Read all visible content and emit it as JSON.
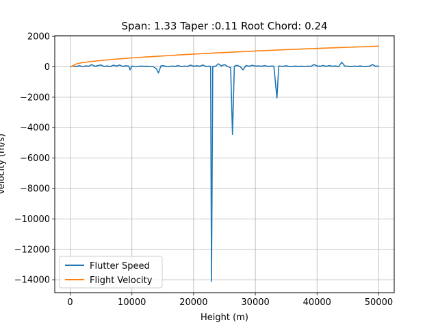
{
  "chart_data": {
    "type": "line",
    "title": "Span: 1.33 Taper :0.11 Root Chord: 0.24",
    "xlabel": "Height (m)",
    "ylabel": "Velocity (m/s)",
    "xlim": [
      -2500,
      52500
    ],
    "ylim": [
      -14850,
      2050
    ],
    "grid": true,
    "legend_position": "lower-left",
    "xticks": [
      0,
      10000,
      20000,
      30000,
      40000,
      50000
    ],
    "xtick_labels": [
      "0",
      "10000",
      "20000",
      "30000",
      "40000",
      "50000"
    ],
    "yticks": [
      2000,
      0,
      -2000,
      -4000,
      -6000,
      -8000,
      -10000,
      -12000,
      -14000
    ],
    "ytick_labels": [
      "2000",
      "0",
      "−2000",
      "−4000",
      "−6000",
      "−8000",
      "−10000",
      "−12000",
      "−14000"
    ],
    "series": [
      {
        "name": "Flutter Speed",
        "color": "#1f77b4",
        "points": [
          [
            0,
            0
          ],
          [
            500,
            60
          ],
          [
            1000,
            20
          ],
          [
            1500,
            80
          ],
          [
            2000,
            10
          ],
          [
            2500,
            60
          ],
          [
            3000,
            40
          ],
          [
            3500,
            150
          ],
          [
            4000,
            30
          ],
          [
            4500,
            80
          ],
          [
            5000,
            120
          ],
          [
            5500,
            20
          ],
          [
            6000,
            60
          ],
          [
            6500,
            20
          ],
          [
            7000,
            110
          ],
          [
            7500,
            50
          ],
          [
            8000,
            120
          ],
          [
            8500,
            30
          ],
          [
            9000,
            70
          ],
          [
            9500,
            50
          ],
          [
            9700,
            -200
          ],
          [
            10000,
            60
          ],
          [
            10500,
            0
          ],
          [
            11000,
            30
          ],
          [
            11500,
            50
          ],
          [
            12000,
            30
          ],
          [
            12500,
            40
          ],
          [
            13000,
            20
          ],
          [
            13500,
            10
          ],
          [
            14000,
            -150
          ],
          [
            14300,
            -400
          ],
          [
            14700,
            60
          ],
          [
            15000,
            80
          ],
          [
            15500,
            30
          ],
          [
            16000,
            20
          ],
          [
            16500,
            50
          ],
          [
            17000,
            30
          ],
          [
            17500,
            80
          ],
          [
            18000,
            20
          ],
          [
            18500,
            50
          ],
          [
            19000,
            30
          ],
          [
            19500,
            110
          ],
          [
            20000,
            40
          ],
          [
            20500,
            70
          ],
          [
            21000,
            40
          ],
          [
            21500,
            120
          ],
          [
            22000,
            20
          ],
          [
            22500,
            50
          ],
          [
            22750,
            30
          ],
          [
            22900,
            -14100
          ],
          [
            23100,
            40
          ],
          [
            23500,
            20
          ],
          [
            24000,
            200
          ],
          [
            24500,
            60
          ],
          [
            25000,
            150
          ],
          [
            25500,
            20
          ],
          [
            26000,
            -50
          ],
          [
            26300,
            -4450
          ],
          [
            26600,
            40
          ],
          [
            27000,
            100
          ],
          [
            27500,
            30
          ],
          [
            28000,
            -200
          ],
          [
            28500,
            90
          ],
          [
            29000,
            40
          ],
          [
            29500,
            100
          ],
          [
            30000,
            50
          ],
          [
            30500,
            60
          ],
          [
            31000,
            40
          ],
          [
            31500,
            80
          ],
          [
            32000,
            30
          ],
          [
            32500,
            50
          ],
          [
            33000,
            40
          ],
          [
            33500,
            -2050
          ],
          [
            33800,
            60
          ],
          [
            34000,
            50
          ],
          [
            34500,
            30
          ],
          [
            35000,
            70
          ],
          [
            35500,
            20
          ],
          [
            36000,
            30
          ],
          [
            36500,
            50
          ],
          [
            37000,
            30
          ],
          [
            37500,
            40
          ],
          [
            38000,
            20
          ],
          [
            38500,
            50
          ],
          [
            39000,
            30
          ],
          [
            39500,
            150
          ],
          [
            40000,
            60
          ],
          [
            40500,
            40
          ],
          [
            41000,
            90
          ],
          [
            41500,
            30
          ],
          [
            42000,
            80
          ],
          [
            42500,
            40
          ],
          [
            43000,
            60
          ],
          [
            43500,
            20
          ],
          [
            44000,
            300
          ],
          [
            44500,
            50
          ],
          [
            45000,
            40
          ],
          [
            45500,
            20
          ],
          [
            46000,
            50
          ],
          [
            46500,
            30
          ],
          [
            47000,
            60
          ],
          [
            47500,
            20
          ],
          [
            48000,
            30
          ],
          [
            48500,
            40
          ],
          [
            49000,
            150
          ],
          [
            49500,
            30
          ],
          [
            50000,
            60
          ]
        ]
      },
      {
        "name": "Flight Velocity",
        "color": "#ff7f0e",
        "points": [
          [
            0,
            0
          ],
          [
            500,
            80
          ],
          [
            1000,
            190
          ],
          [
            1500,
            240
          ],
          [
            2000,
            275
          ],
          [
            3000,
            330
          ],
          [
            4000,
            375
          ],
          [
            5000,
            415
          ],
          [
            6000,
            455
          ],
          [
            7000,
            490
          ],
          [
            8000,
            525
          ],
          [
            9000,
            555
          ],
          [
            10000,
            585
          ],
          [
            12000,
            640
          ],
          [
            14000,
            690
          ],
          [
            16000,
            740
          ],
          [
            18000,
            790
          ],
          [
            20000,
            835
          ],
          [
            22000,
            880
          ],
          [
            24000,
            920
          ],
          [
            26000,
            960
          ],
          [
            28000,
            1000
          ],
          [
            30000,
            1040
          ],
          [
            32000,
            1075
          ],
          [
            34000,
            1110
          ],
          [
            36000,
            1145
          ],
          [
            38000,
            1180
          ],
          [
            40000,
            1210
          ],
          [
            42000,
            1240
          ],
          [
            44000,
            1270
          ],
          [
            46000,
            1300
          ],
          [
            48000,
            1330
          ],
          [
            50000,
            1360
          ]
        ]
      }
    ]
  }
}
